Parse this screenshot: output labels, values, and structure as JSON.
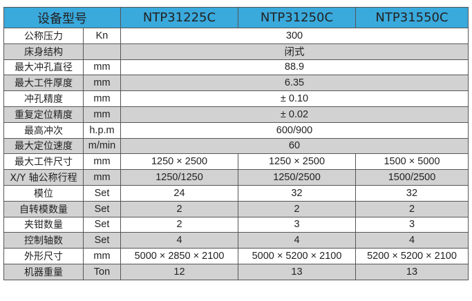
{
  "header": {
    "label": "设备型号",
    "models": [
      "NTP31225C",
      "NTP31250C",
      "NTP31550C"
    ]
  },
  "colors": {
    "header": "#3aa9dc",
    "alt_row": "#d2d2d2"
  },
  "rows": [
    {
      "name": "公称压力",
      "unit": "Kn",
      "values": [
        "300"
      ]
    },
    {
      "name": "床身结构",
      "unit": "",
      "values": [
        "闭式"
      ]
    },
    {
      "name": "最大冲孔直径",
      "unit": "mm",
      "values": [
        "88.9"
      ]
    },
    {
      "name": "最大工件厚度",
      "unit": "mm",
      "values": [
        "6.35"
      ]
    },
    {
      "name": "冲孔精度",
      "unit": "mm",
      "values": [
        "± 0.10"
      ]
    },
    {
      "name": "重复定位精度",
      "unit": "mm",
      "values": [
        "± 0.02"
      ]
    },
    {
      "name": "最高冲次",
      "unit": "h.p.m",
      "values": [
        "600/900"
      ]
    },
    {
      "name": "最大定位速度",
      "unit": "m/min",
      "values": [
        "60"
      ]
    },
    {
      "name": "最大工件尺寸",
      "unit": "mm",
      "values": [
        "1250 × 2500",
        "1250 × 2500",
        "1500 × 5000"
      ]
    },
    {
      "name": "X/Y 轴公称行程",
      "unit": "mm",
      "values": [
        "1250/1250",
        "1250/2500",
        "1500/2500"
      ]
    },
    {
      "name": "模位",
      "unit": "Set",
      "values": [
        "24",
        "32",
        "32"
      ]
    },
    {
      "name": "自转模数量",
      "unit": "Set",
      "values": [
        "2",
        "2",
        "2"
      ]
    },
    {
      "name": "夹钳数量",
      "unit": "Set",
      "values": [
        "2",
        "3",
        "3"
      ]
    },
    {
      "name": "控制轴数",
      "unit": "Set",
      "values": [
        "4",
        "4",
        "4"
      ]
    },
    {
      "name": "外形尺寸",
      "unit": "mm",
      "values": [
        "5000 × 2850 × 2100",
        "5000 × 5200 × 2100",
        "5200 × 5200 × 2100"
      ]
    },
    {
      "name": "机器重量",
      "unit": "Ton",
      "values": [
        "12",
        "13",
        "13"
      ]
    }
  ]
}
